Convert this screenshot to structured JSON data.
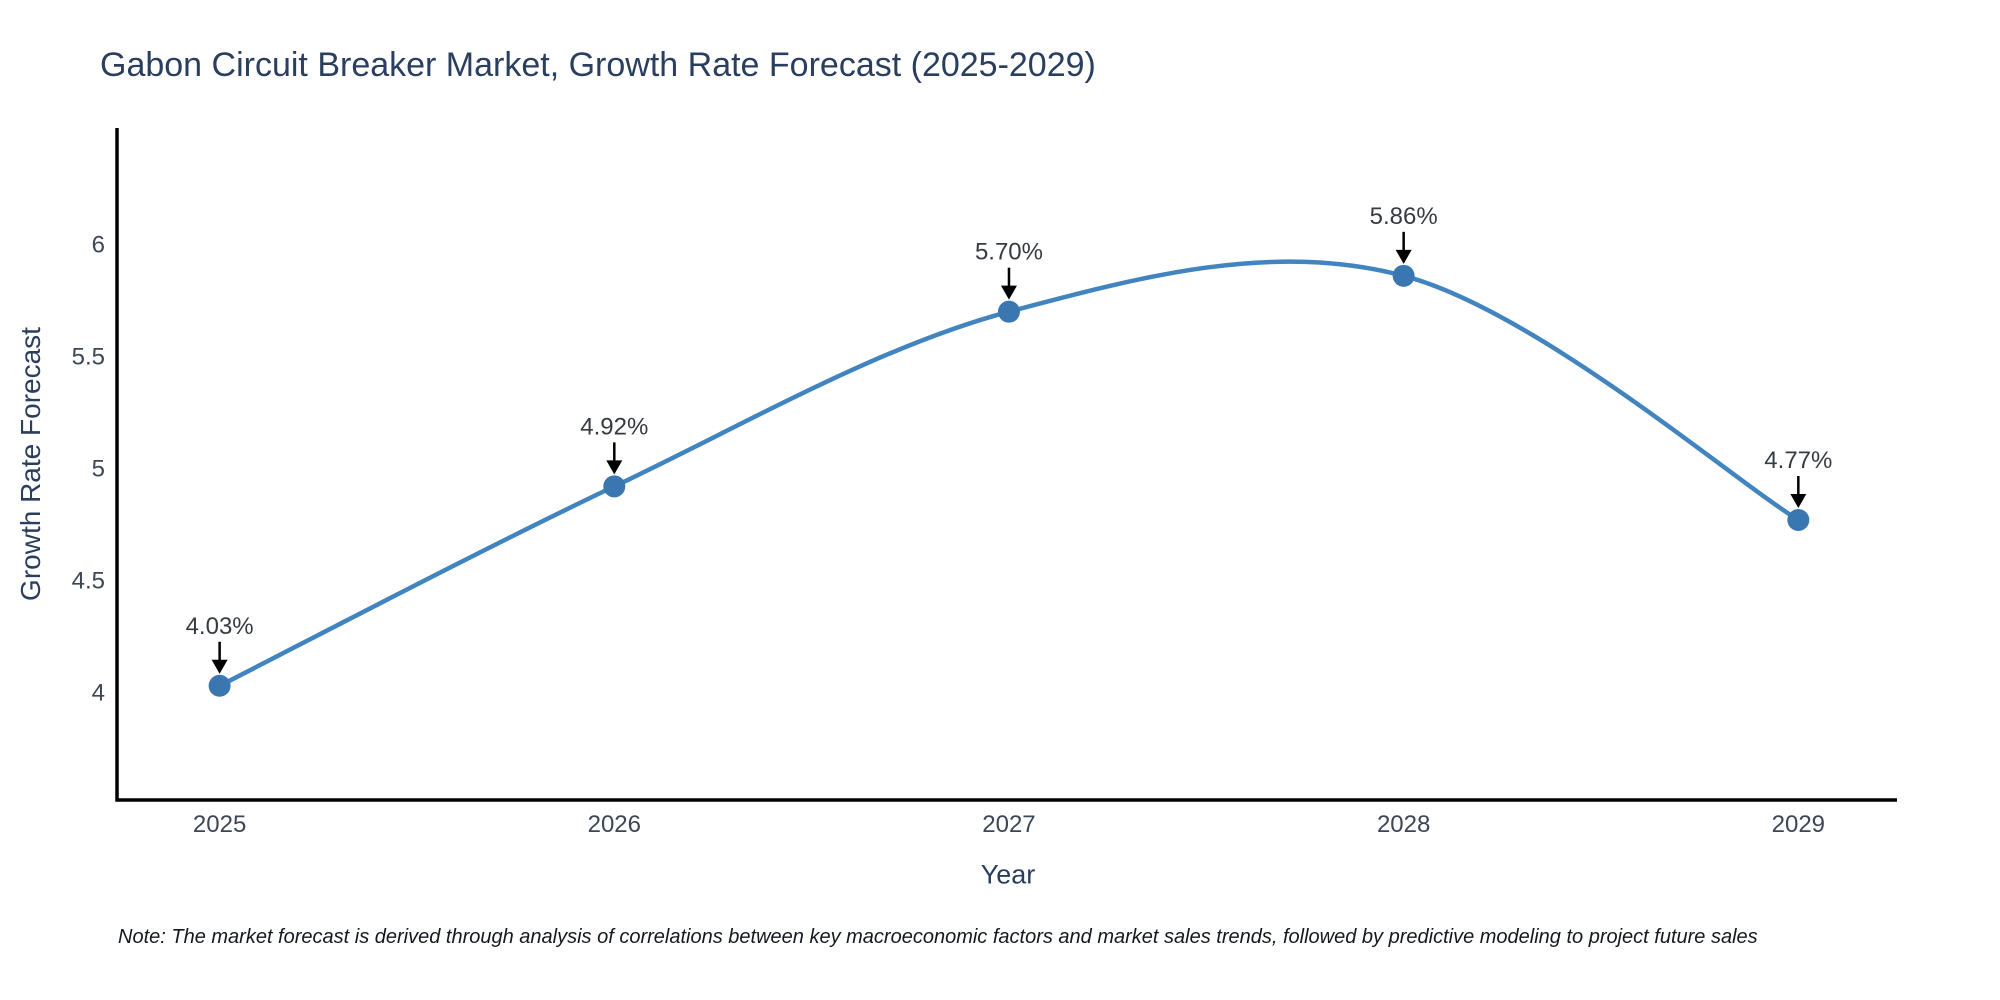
{
  "title": "Gabon Circuit Breaker Market, Growth Rate Forecast (2025-2029)",
  "footnote": "Note: The market forecast is derived through analysis of correlations between key macroeconomic factors and market sales trends, followed by predictive modeling to project future sales",
  "chart_data": {
    "type": "line",
    "line_shape": "spline",
    "title": "Gabon Circuit Breaker Market, Growth Rate Forecast (2025-2029)",
    "xlabel": "Year",
    "ylabel": "Growth Rate Forecast",
    "x": [
      2025,
      2026,
      2027,
      2028,
      2029
    ],
    "values": [
      4.03,
      4.92,
      5.7,
      5.86,
      4.77
    ],
    "point_labels": [
      "4.03%",
      "4.92%",
      "5.70%",
      "5.86%",
      "4.77%"
    ],
    "xticks": [
      "2025",
      "2026",
      "2027",
      "2028",
      "2029"
    ],
    "yticks": [
      4,
      4.5,
      5,
      5.5,
      6
    ],
    "xlim": [
      2024.74,
      2029.25
    ],
    "ylim": [
      3.52,
      6.52
    ],
    "grid": false,
    "legend": false,
    "colors": {
      "line": "#4184c0",
      "marker": "#3a77b1",
      "axis_line": "#000000",
      "tick_label": "#3d4657",
      "annotation_text": "#363b42",
      "annotation_arrow": "#000000",
      "title_text": "#2a3f5f"
    }
  }
}
